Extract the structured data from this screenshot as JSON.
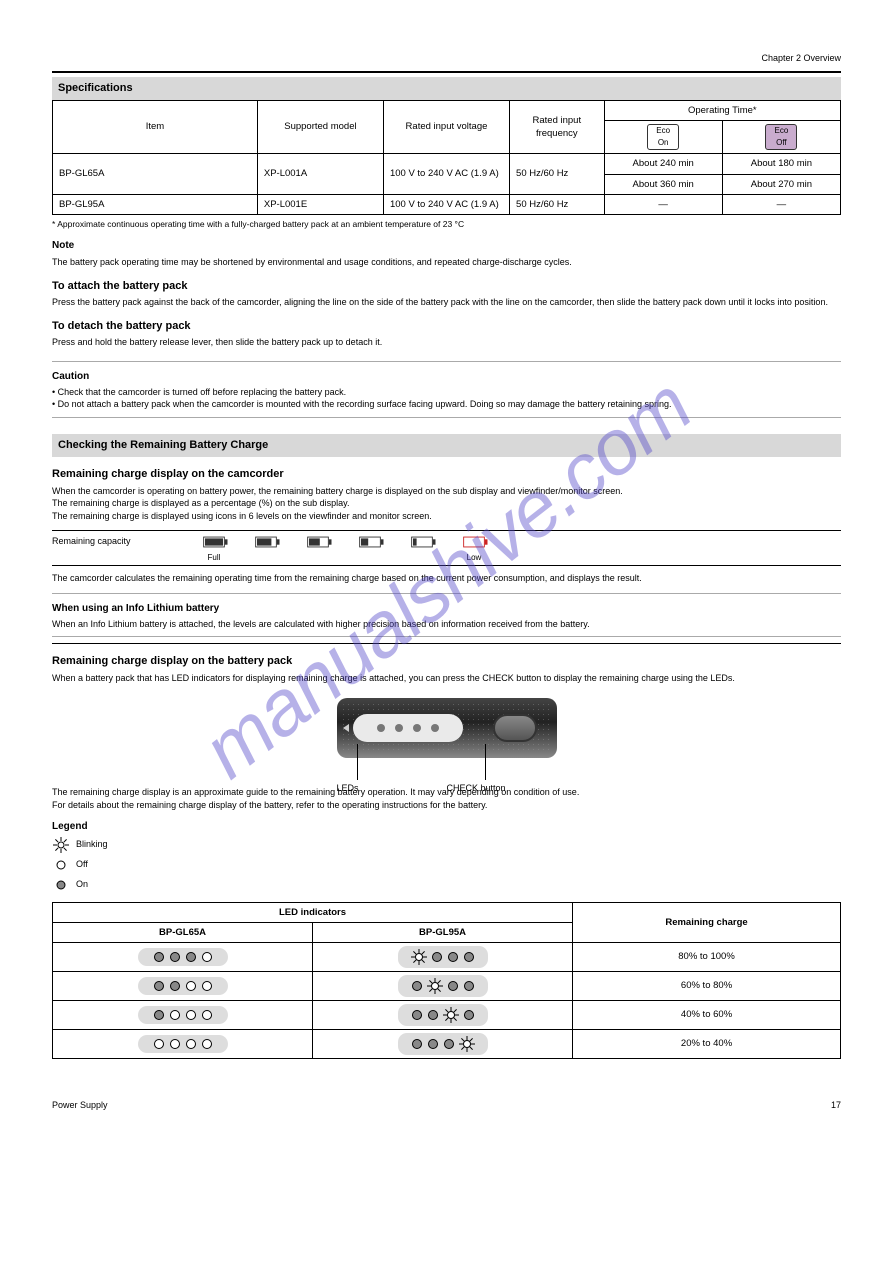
{
  "header": {
    "chapter": "Chapter 2  Overview",
    "section_bar": "Specifications"
  },
  "spec_table": {
    "labels": {
      "item": "Item",
      "model": "Supported model",
      "rated_input_voltage": "Rated input voltage",
      "rated_input_frequency": "Rated input frequency",
      "operating_time": "Operating Time*"
    },
    "pill_eco_on": "Eco On",
    "pill_eco_off": "Eco Off",
    "rows": [
      {
        "model": "XP-L001A",
        "voltage": "100 V to 240 V AC (1.9 A)",
        "freq": "50 Hz/60 Hz",
        "dur_on": "About 240 min",
        "dur_off": "About 180 min"
      },
      {
        "model": "XP-L001E",
        "voltage": "100 V to 240 V AC (1.9 A)",
        "freq": "50 Hz/60 Hz",
        "dur_on": "About 360 min",
        "dur_off": "About 270 min"
      }
    ],
    "bp_rows": [
      "BP-GL65A",
      "BP-GL95A"
    ],
    "footnote": "*  Approximate continuous operating time with a fully-charged battery pack at an ambient temperature of 23 °C",
    "note_text": "The battery pack operating time may be shortened by environmental and usage conditions, and repeated charge-discharge cycles."
  },
  "battery_attach": {
    "heading": "To attach the battery pack",
    "body": "Press the battery pack against the back of the camcorder, aligning the line on the side of the battery pack with the line on the camcorder, then slide the battery pack down until it locks into position."
  },
  "battery_detach": {
    "heading": "To detach the battery pack",
    "body": "Press and hold the battery release lever, then slide the battery pack up to detach it."
  },
  "caution": {
    "heading": "Caution",
    "lines": [
      "• Check that the camcorder is turned off before replacing the battery pack.",
      "• Do not attach a battery pack when the camcorder is mounted with the recording surface facing upward. Doing so may damage the battery retaining spring."
    ]
  },
  "remaining": {
    "section_bar": "Checking the Remaining Battery Charge",
    "heading": "Remaining charge display on the camcorder",
    "line1": "When the camcorder is operating on battery power, the remaining battery charge is displayed on the sub display and viewfinder/monitor screen.",
    "line2": "The remaining charge is displayed as a percentage (%) on the sub display.",
    "line3": "The remaining charge is displayed using icons in 6 levels on the viewfinder and monitor screen.",
    "icons_row": "Remaining capacity",
    "levels": [
      "Full",
      "",
      "",
      "",
      "",
      "Low"
    ],
    "calc_note": "The camcorder calculates the remaining operating time from the remaining charge based on the current power consumption, and displays the result.",
    "info_heading": "When using an Info Lithium battery",
    "info_body": "When an Info Lithium battery is attached, the levels are calculated with higher precision based on information received from the battery."
  },
  "indicator": {
    "heading": "Remaining charge display on the battery pack",
    "body": "When a battery pack that has LED indicators for displaying remaining charge is attached, you can press the CHECK button to display the remaining charge using the LEDs.",
    "labels": {
      "leds": "LEDs",
      "check": "CHECK button"
    },
    "note1": "The remaining charge display is an approximate guide to the remaining battery operation. It may vary depending on condition of use.",
    "note2": "For details about the remaining charge display of the battery, refer to the operating instructions for the battery.",
    "legend_heading": "Legend",
    "legend": [
      {
        "type": "blink",
        "text": "Blinking"
      },
      {
        "type": "off",
        "text": "Off"
      },
      {
        "type": "on",
        "text": "On"
      }
    ]
  },
  "charge_table": {
    "headers": {
      "led": "LED indicators",
      "bp65": "BP-GL65A",
      "bp95": "BP-GL95A",
      "remaining": "Remaining charge"
    },
    "rows": [
      {
        "pattern65": [
          "on",
          "on",
          "on",
          "off"
        ],
        "pattern95": [
          "blink",
          "on",
          "on",
          "on"
        ],
        "remaining": "80% to 100%"
      },
      {
        "pattern65": [
          "on",
          "on",
          "off",
          "off"
        ],
        "pattern95": [
          "on",
          "blink",
          "on",
          "on"
        ],
        "remaining": "60% to 80%"
      },
      {
        "pattern65": [
          "on",
          "off",
          "off",
          "off"
        ],
        "pattern95": [
          "on",
          "on",
          "blink",
          "on"
        ],
        "remaining": "40% to 60%"
      },
      {
        "pattern65": [
          "off",
          "off",
          "off",
          "off"
        ],
        "pattern95": [
          "on",
          "on",
          "on",
          "blink"
        ],
        "remaining": "20% to 40%"
      }
    ]
  },
  "footer": {
    "left": "Power Supply",
    "page": "17"
  },
  "watermark": "manualshive.com",
  "colors": {
    "section_bg": "#d8d8d8",
    "pill_fill": "#c9acce",
    "battery_red": "#c22",
    "watermark": "rgba(80,70,200,0.42)"
  }
}
